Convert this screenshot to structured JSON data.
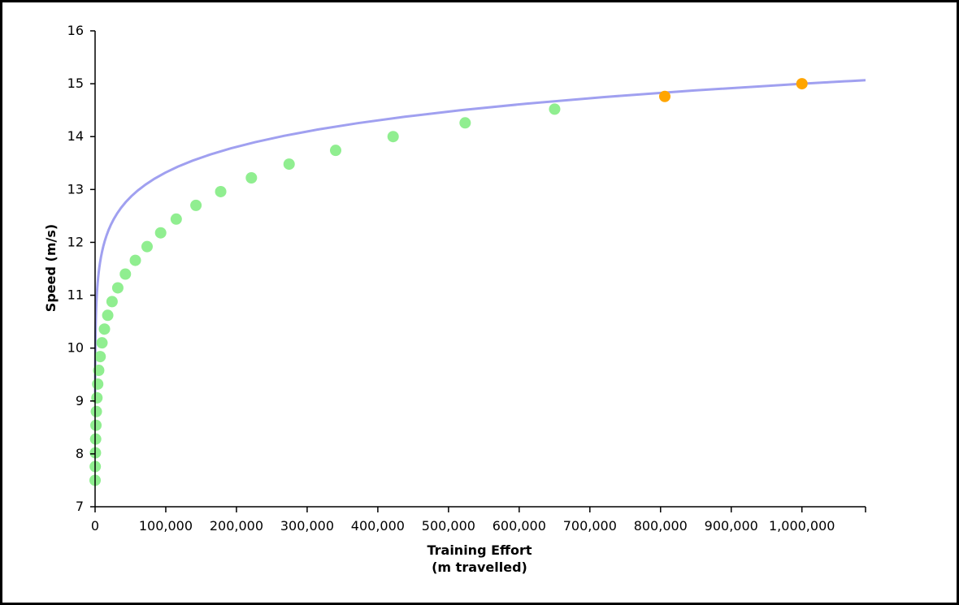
{
  "chart_data": {
    "type": "scatter",
    "title": "",
    "xlabel": [
      "Training Effort",
      "(m travelled)"
    ],
    "ylabel": "Speed (m/s)",
    "xlim": [
      0,
      1090000
    ],
    "ylim": [
      7,
      16
    ],
    "x_ticks": [
      0,
      100000,
      200000,
      300000,
      400000,
      500000,
      600000,
      700000,
      800000,
      900000,
      1000000
    ],
    "x_tick_labels": [
      "0",
      "100,000",
      "200,000",
      "300,000",
      "400,000",
      "500,000",
      "600,000",
      "700,000",
      "800,000",
      "900,000",
      "1,000,000"
    ],
    "y_ticks": [
      7,
      8,
      9,
      10,
      11,
      12,
      13,
      14,
      15,
      16
    ],
    "y_tick_labels": [
      "7",
      "8",
      "9",
      "10",
      "11",
      "12",
      "13",
      "14",
      "15",
      "16"
    ],
    "grid": false,
    "curve": {
      "color": "#a0a0f0",
      "model": "speed = 15 * (effort / 1000000) ^ 0.0515",
      "x_range": [
        0,
        1090000
      ]
    },
    "series": [
      {
        "color": "#90ee90",
        "points": [
          [
            0,
            7.5
          ],
          [
            207,
            7.76
          ],
          [
            466,
            8.02
          ],
          [
            783,
            8.28
          ],
          [
            1212,
            8.54
          ],
          [
            1798,
            8.8
          ],
          [
            2622,
            9.06
          ],
          [
            3706,
            9.32
          ],
          [
            5163,
            9.58
          ],
          [
            7153,
            9.84
          ],
          [
            9770,
            10.1
          ],
          [
            13248,
            10.36
          ],
          [
            17887,
            10.62
          ],
          [
            24012,
            10.88
          ],
          [
            32117,
            11.14
          ],
          [
            42839,
            11.4
          ],
          [
            56938,
            11.66
          ],
          [
            73570,
            11.92
          ],
          [
            92785,
            12.18
          ],
          [
            114796,
            12.44
          ],
          [
            142692,
            12.7
          ],
          [
            177700,
            12.96
          ],
          [
            221126,
            13.22
          ],
          [
            274488,
            13.48
          ],
          [
            340340,
            13.74
          ],
          [
            421650,
            14.0
          ],
          [
            523530,
            14.26
          ],
          [
            650150,
            14.52
          ]
        ]
      },
      {
        "color": "#ffa500",
        "points": [
          [
            806000,
            14.76
          ],
          [
            1000000,
            15.0
          ]
        ]
      }
    ]
  }
}
